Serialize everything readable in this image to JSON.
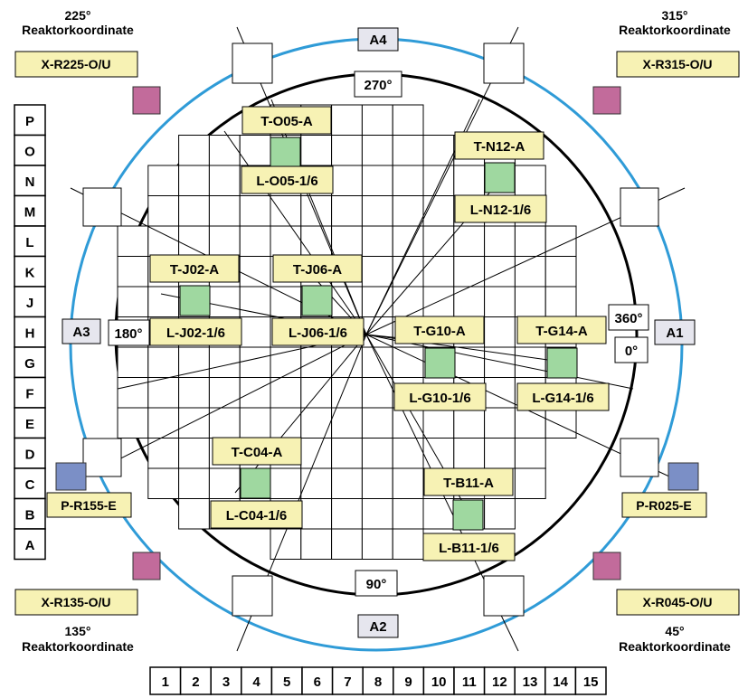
{
  "row_labels": [
    "P",
    "O",
    "N",
    "M",
    "L",
    "K",
    "J",
    "H",
    "G",
    "F",
    "E",
    "D",
    "C",
    "B",
    "A"
  ],
  "column_labels": [
    "1",
    "2",
    "3",
    "4",
    "5",
    "6",
    "7",
    "8",
    "9",
    "10",
    "11",
    "12",
    "13",
    "14",
    "15"
  ],
  "angles": {
    "top": "270°",
    "bottom": "90°",
    "left": "180°",
    "right_top": "360°",
    "right_bottom": "0°"
  },
  "access_points": {
    "a1": "A1",
    "a2": "A2",
    "a3": "A3",
    "a4": "A4"
  },
  "corners": {
    "top_left": {
      "angle": "225°",
      "subtitle": "Reaktorkoordinate",
      "tag": "X-R225-O/U"
    },
    "top_right": {
      "angle": "315°",
      "subtitle": "Reaktorkoordinate",
      "tag": "X-R315-O/U"
    },
    "bottom_left": {
      "angle": "135°",
      "subtitle": "Reaktorkoordinate",
      "tag": "X-R135-O/U"
    },
    "bottom_right": {
      "angle": "45°",
      "subtitle": "Reaktorkoordinate",
      "tag": "X-R045-O/U"
    }
  },
  "pressure_labels": {
    "left": "P-R155-E",
    "right": "P-R025-E"
  },
  "positions": [
    {
      "top": "T-O05-A",
      "bottom": "L-O05-1/6"
    },
    {
      "top": "T-N12-A",
      "bottom": "L-N12-1/6"
    },
    {
      "top": "T-J02-A",
      "bottom": "L-J02-1/6"
    },
    {
      "top": "T-J06-A",
      "bottom": "L-J06-1/6"
    },
    {
      "top": "T-G10-A",
      "bottom": "L-G10-1/6"
    },
    {
      "top": "T-G14-A",
      "bottom": "L-G14-1/6"
    },
    {
      "top": "T-C04-A",
      "bottom": "L-C04-1/6"
    },
    {
      "top": "T-B11-A",
      "bottom": "L-B11-1/6"
    }
  ],
  "colors": {
    "outer_ring": "#2f9bd7",
    "inner_ring": "#000000",
    "tag_fill": "#f7f2b4",
    "tag_green": "#9fd8a0",
    "magenta_marker": "#c26b9b",
    "blue_marker": "#7b8fc6",
    "access_fill": "#e6e6ee"
  }
}
